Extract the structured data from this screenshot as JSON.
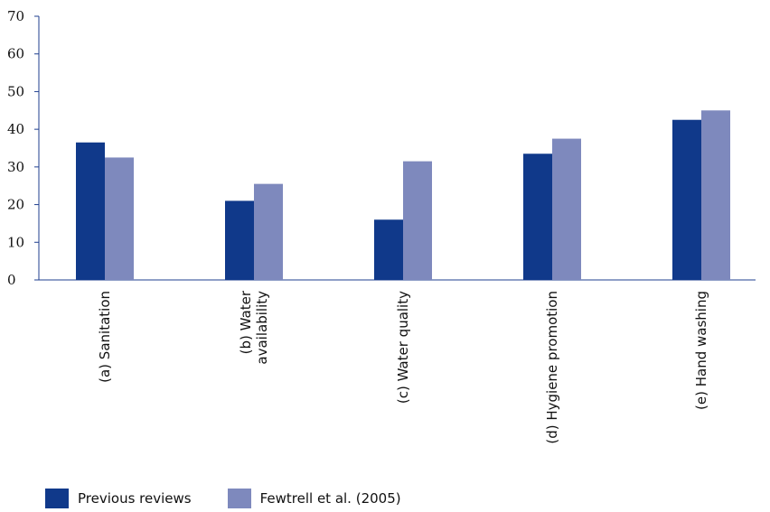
{
  "chart_data": {
    "type": "bar",
    "title": "",
    "xlabel": "",
    "ylabel": "",
    "ylim": [
      0,
      70
    ],
    "yticks": [
      0,
      10,
      20,
      30,
      40,
      50,
      60,
      70
    ],
    "categories": [
      [
        "(a) Sanitation"
      ],
      [
        "(b) Water",
        "availability"
      ],
      [
        "(c) Water quality"
      ],
      [
        "(d) Hygiene promotion"
      ],
      [
        "(e) Hand washing"
      ]
    ],
    "series": [
      {
        "name": "Previous reviews",
        "color": "#10398a",
        "values": [
          36.5,
          21,
          16,
          33.5,
          42.5
        ]
      },
      {
        "name": "Fewtrell et al. (2005)",
        "color": "#7e89bd",
        "values": [
          32.5,
          25.5,
          31.5,
          37.5,
          45
        ]
      }
    ],
    "grid": false,
    "legend_position": "bottom-left"
  }
}
